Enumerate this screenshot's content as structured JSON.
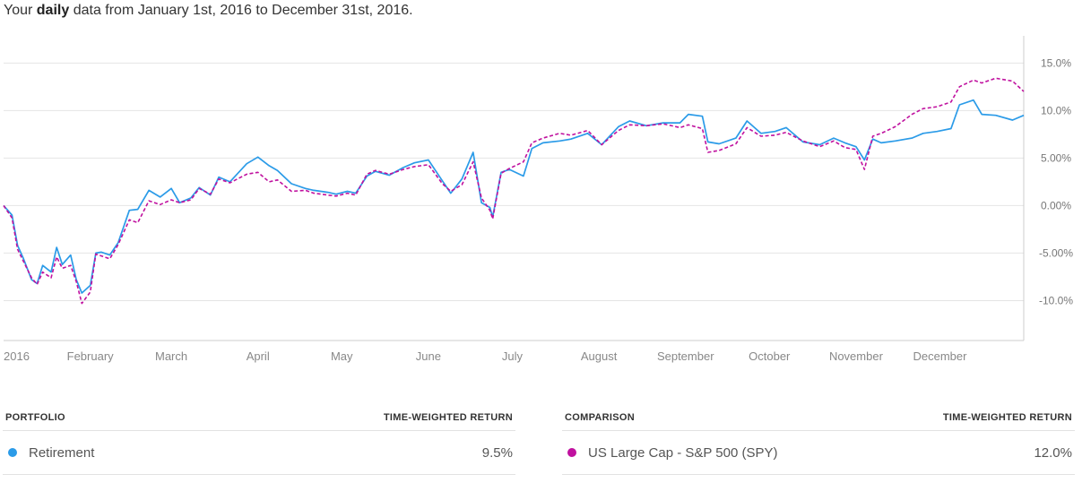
{
  "header": {
    "prefix": "Your ",
    "emphasis": "daily",
    "suffix": " data from January 1st, 2016 to December 31st, 2016."
  },
  "colors": {
    "portfolio": "#2b9be8",
    "comparison": "#c0119f",
    "grid": "#e4e4e4",
    "axis": "#cccccc"
  },
  "chart_data": {
    "type": "line",
    "x_range": [
      "2016-01-01",
      "2016-12-31"
    ],
    "x_ticks": [
      {
        "date": "2016-01-01",
        "label": "2016"
      },
      {
        "date": "2016-02-01",
        "label": "February"
      },
      {
        "date": "2016-03-01",
        "label": "March"
      },
      {
        "date": "2016-04-01",
        "label": "April"
      },
      {
        "date": "2016-05-01",
        "label": "May"
      },
      {
        "date": "2016-06-01",
        "label": "June"
      },
      {
        "date": "2016-07-01",
        "label": "July"
      },
      {
        "date": "2016-08-01",
        "label": "August"
      },
      {
        "date": "2016-09-01",
        "label": "September"
      },
      {
        "date": "2016-10-01",
        "label": "October"
      },
      {
        "date": "2016-11-01",
        "label": "November"
      },
      {
        "date": "2016-12-01",
        "label": "December"
      }
    ],
    "y_ticks": [
      {
        "value": 15,
        "label": "15.0%"
      },
      {
        "value": 10,
        "label": "10.0%"
      },
      {
        "value": 5,
        "label": "5.00%"
      },
      {
        "value": 0,
        "label": "0.00%"
      },
      {
        "value": -5,
        "label": "-5.00%"
      },
      {
        "value": -10,
        "label": "-10.0%"
      }
    ],
    "ylim": [
      -14.2,
      17.2
    ],
    "grid": true,
    "series": [
      {
        "name": "Retirement",
        "style": "solid",
        "x": [
          "2016-01-01",
          "2016-01-04",
          "2016-01-06",
          "2016-01-08",
          "2016-01-11",
          "2016-01-13",
          "2016-01-15",
          "2016-01-18",
          "2016-01-20",
          "2016-01-22",
          "2016-01-25",
          "2016-01-27",
          "2016-01-29",
          "2016-02-01",
          "2016-02-03",
          "2016-02-05",
          "2016-02-08",
          "2016-02-11",
          "2016-02-15",
          "2016-02-18",
          "2016-02-22",
          "2016-02-26",
          "2016-03-01",
          "2016-03-04",
          "2016-03-08",
          "2016-03-11",
          "2016-03-15",
          "2016-03-18",
          "2016-03-22",
          "2016-03-28",
          "2016-04-01",
          "2016-04-05",
          "2016-04-08",
          "2016-04-13",
          "2016-04-18",
          "2016-04-21",
          "2016-04-26",
          "2016-04-29",
          "2016-05-03",
          "2016-05-06",
          "2016-05-10",
          "2016-05-13",
          "2016-05-18",
          "2016-05-23",
          "2016-05-27",
          "2016-06-01",
          "2016-06-06",
          "2016-06-09",
          "2016-06-13",
          "2016-06-17",
          "2016-06-20",
          "2016-06-23",
          "2016-06-24",
          "2016-06-27",
          "2016-06-30",
          "2016-07-05",
          "2016-07-08",
          "2016-07-12",
          "2016-07-18",
          "2016-07-22",
          "2016-07-28",
          "2016-08-02",
          "2016-08-08",
          "2016-08-12",
          "2016-08-18",
          "2016-08-24",
          "2016-08-30",
          "2016-09-02",
          "2016-09-07",
          "2016-09-09",
          "2016-09-13",
          "2016-09-19",
          "2016-09-23",
          "2016-09-28",
          "2016-10-03",
          "2016-10-07",
          "2016-10-13",
          "2016-10-19",
          "2016-10-24",
          "2016-10-28",
          "2016-11-01",
          "2016-11-04",
          "2016-11-07",
          "2016-11-10",
          "2016-11-15",
          "2016-11-21",
          "2016-11-25",
          "2016-11-30",
          "2016-12-05",
          "2016-12-08",
          "2016-12-13",
          "2016-12-16",
          "2016-12-21",
          "2016-12-27",
          "2016-12-31"
        ],
        "values": [
          0.0,
          -1.0,
          -4.2,
          -5.5,
          -7.8,
          -8.2,
          -6.3,
          -7.0,
          -4.4,
          -6.2,
          -5.2,
          -7.8,
          -9.2,
          -8.4,
          -5.0,
          -4.9,
          -5.2,
          -3.9,
          -0.5,
          -0.4,
          1.6,
          0.9,
          1.8,
          0.3,
          0.8,
          1.9,
          1.1,
          3.0,
          2.5,
          4.4,
          5.1,
          4.2,
          3.7,
          2.3,
          1.8,
          1.6,
          1.4,
          1.2,
          1.5,
          1.3,
          3.1,
          3.6,
          3.2,
          4.0,
          4.5,
          4.8,
          2.6,
          1.3,
          2.8,
          5.6,
          0.3,
          -0.2,
          -1.2,
          3.5,
          3.8,
          3.1,
          6.0,
          6.6,
          6.8,
          7.0,
          7.6,
          6.4,
          8.3,
          8.9,
          8.4,
          8.7,
          8.7,
          9.6,
          9.4,
          6.7,
          6.5,
          7.1,
          8.9,
          7.6,
          7.8,
          8.2,
          6.7,
          6.4,
          7.1,
          6.6,
          6.2,
          4.8,
          7.0,
          6.6,
          6.8,
          7.1,
          7.6,
          7.8,
          8.1,
          10.6,
          11.1,
          9.6,
          9.5,
          9.0,
          9.5
        ]
      },
      {
        "name": "US Large Cap - S&P 500 (SPY)",
        "style": "dashed",
        "x": [
          "2016-01-01",
          "2016-01-04",
          "2016-01-06",
          "2016-01-08",
          "2016-01-11",
          "2016-01-13",
          "2016-01-15",
          "2016-01-18",
          "2016-01-20",
          "2016-01-22",
          "2016-01-25",
          "2016-01-27",
          "2016-01-29",
          "2016-02-01",
          "2016-02-03",
          "2016-02-05",
          "2016-02-08",
          "2016-02-11",
          "2016-02-15",
          "2016-02-18",
          "2016-02-22",
          "2016-02-26",
          "2016-03-01",
          "2016-03-04",
          "2016-03-08",
          "2016-03-11",
          "2016-03-15",
          "2016-03-18",
          "2016-03-22",
          "2016-03-28",
          "2016-04-01",
          "2016-04-05",
          "2016-04-08",
          "2016-04-13",
          "2016-04-18",
          "2016-04-21",
          "2016-04-26",
          "2016-04-29",
          "2016-05-03",
          "2016-05-06",
          "2016-05-10",
          "2016-05-13",
          "2016-05-18",
          "2016-05-23",
          "2016-05-27",
          "2016-06-01",
          "2016-06-06",
          "2016-06-09",
          "2016-06-13",
          "2016-06-17",
          "2016-06-20",
          "2016-06-23",
          "2016-06-24",
          "2016-06-27",
          "2016-06-30",
          "2016-07-05",
          "2016-07-08",
          "2016-07-12",
          "2016-07-18",
          "2016-07-22",
          "2016-07-28",
          "2016-08-02",
          "2016-08-08",
          "2016-08-12",
          "2016-08-18",
          "2016-08-24",
          "2016-08-30",
          "2016-09-02",
          "2016-09-07",
          "2016-09-09",
          "2016-09-13",
          "2016-09-19",
          "2016-09-23",
          "2016-09-28",
          "2016-10-03",
          "2016-10-07",
          "2016-10-13",
          "2016-10-19",
          "2016-10-24",
          "2016-10-28",
          "2016-11-01",
          "2016-11-04",
          "2016-11-07",
          "2016-11-10",
          "2016-11-15",
          "2016-11-21",
          "2016-11-25",
          "2016-11-30",
          "2016-12-05",
          "2016-12-08",
          "2016-12-13",
          "2016-12-16",
          "2016-12-21",
          "2016-12-27",
          "2016-12-31"
        ],
        "values": [
          0.0,
          -1.3,
          -4.6,
          -5.8,
          -7.6,
          -8.3,
          -7.0,
          -7.6,
          -5.4,
          -6.6,
          -6.3,
          -8.0,
          -10.3,
          -9.1,
          -5.1,
          -5.3,
          -5.6,
          -4.1,
          -1.5,
          -1.8,
          0.5,
          0.1,
          0.6,
          0.3,
          0.6,
          1.8,
          1.2,
          2.8,
          2.4,
          3.3,
          3.5,
          2.5,
          2.7,
          1.5,
          1.6,
          1.3,
          1.1,
          1.0,
          1.3,
          1.1,
          3.3,
          3.7,
          3.3,
          3.8,
          4.1,
          4.3,
          2.3,
          1.5,
          2.2,
          4.6,
          0.8,
          -0.5,
          -1.4,
          3.4,
          3.9,
          4.6,
          6.6,
          7.1,
          7.6,
          7.4,
          7.9,
          6.4,
          7.9,
          8.5,
          8.4,
          8.6,
          8.2,
          8.5,
          8.1,
          5.6,
          5.8,
          6.5,
          8.2,
          7.3,
          7.4,
          7.7,
          6.8,
          6.2,
          6.8,
          6.1,
          5.9,
          3.8,
          7.3,
          7.6,
          8.3,
          9.6,
          10.2,
          10.4,
          10.9,
          12.5,
          13.2,
          12.9,
          13.4,
          13.1,
          12.0
        ]
      }
    ]
  },
  "tables": {
    "portfolio": {
      "header": "PORTFOLIO",
      "return_header": "TIME-WEIGHTED RETURN",
      "name": "Retirement",
      "value": "9.5%"
    },
    "comparison": {
      "header": "COMPARISON",
      "return_header": "TIME-WEIGHTED RETURN",
      "name": "US Large Cap - S&P 500 (SPY)",
      "value": "12.0%"
    }
  }
}
